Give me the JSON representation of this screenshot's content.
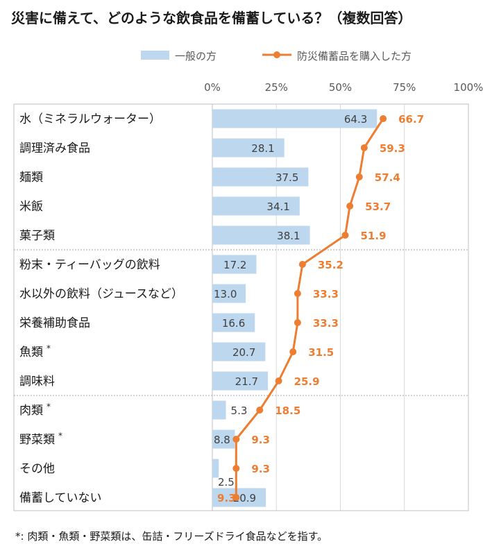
{
  "title": "災害に備えて、どのような飲食品を備蓄している？（複数回答）",
  "footnote": "*: 肉類・魚類・野菜類は、缶詰・フリーズドライ食品などを指す。",
  "colors": {
    "bar": "#bdd7ee",
    "line": "#ed7d31",
    "grid": "#d9d9d9",
    "axis_text": "#595959",
    "label_text": "#1a1a1a",
    "line_label": "#ed7d31"
  },
  "chart_data": {
    "type": "bar",
    "orientation": "horizontal",
    "title": "災害に備えて、どのような飲食品を備蓄している？（複数回答）",
    "xlim": [
      0,
      100
    ],
    "x_ticks": [
      "0%",
      "25%",
      "50%",
      "75%",
      "100%"
    ],
    "x_tick_values": [
      0,
      25,
      50,
      75,
      100
    ],
    "legend_position": "top",
    "categories": [
      {
        "label": "水（ミネラルウォーター）",
        "mark": ""
      },
      {
        "label": "調理済み食品",
        "mark": ""
      },
      {
        "label": "麺類",
        "mark": ""
      },
      {
        "label": "米飯",
        "mark": ""
      },
      {
        "label": "菓子類",
        "mark": ""
      },
      {
        "label": "粉末・ティーバッグの飲料",
        "mark": ""
      },
      {
        "label": "水以外の飲料（ジュースなど）",
        "mark": ""
      },
      {
        "label": "栄養補助食品",
        "mark": ""
      },
      {
        "label": "魚類",
        "mark": "*"
      },
      {
        "label": "調味料",
        "mark": ""
      },
      {
        "label": "肉類",
        "mark": "*"
      },
      {
        "label": "野菜類",
        "mark": "*"
      },
      {
        "label": "その他",
        "mark": ""
      },
      {
        "label": "備蓄していない",
        "mark": ""
      }
    ],
    "group_separators_after": [
      5,
      10
    ],
    "series": [
      {
        "name": "一般の方",
        "kind": "bar",
        "values": [
          64.3,
          28.1,
          37.5,
          34.1,
          38.1,
          17.2,
          13.0,
          16.6,
          20.7,
          21.7,
          5.3,
          8.8,
          2.5,
          20.9
        ],
        "labels": [
          "64.3",
          "28.1",
          "37.5",
          "34.1",
          "38.1",
          "17.2",
          "13.0",
          "16.6",
          "20.7",
          "21.7",
          "5.3",
          "8.8",
          "2.5",
          "20.9"
        ]
      },
      {
        "name": "防災備蓄品を購入した方",
        "kind": "line",
        "values": [
          66.7,
          59.3,
          57.4,
          53.7,
          51.9,
          35.2,
          33.3,
          33.3,
          31.5,
          25.9,
          18.5,
          9.3,
          9.3,
          9.3
        ],
        "labels": [
          "66.7",
          "59.3",
          "57.4",
          "53.7",
          "51.9",
          "35.2",
          "33.3",
          "33.3",
          "31.5",
          "25.9",
          "18.5",
          "9.3",
          "9.3",
          "9.3"
        ]
      }
    ]
  }
}
